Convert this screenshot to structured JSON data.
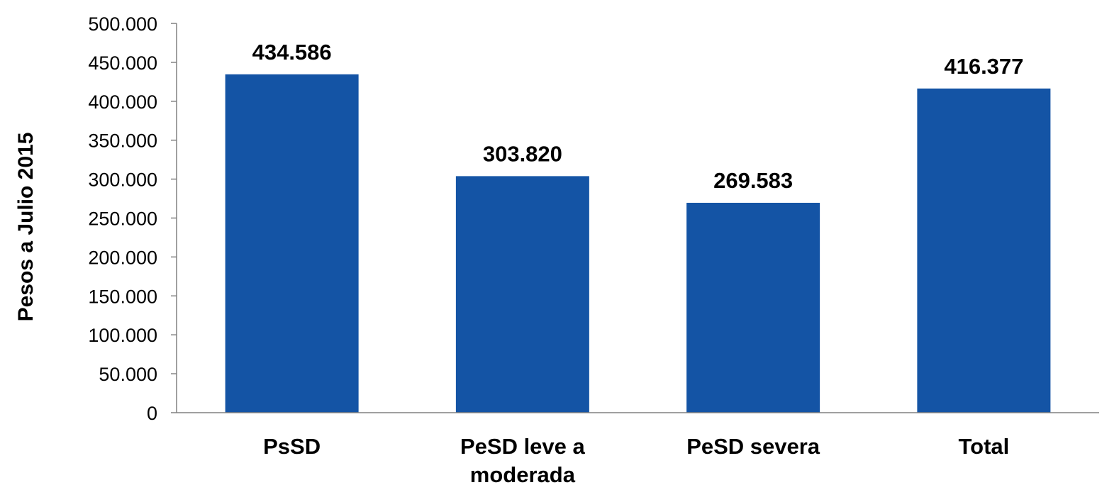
{
  "chart_data": {
    "type": "bar",
    "title": "",
    "xlabel": "",
    "ylabel": "Pesos a Julio 2015",
    "categories": [
      [
        "PsSD"
      ],
      [
        "PeSD leve a",
        "moderada"
      ],
      [
        "PeSD severa"
      ],
      [
        "Total"
      ]
    ],
    "values": [
      434586,
      303820,
      269583,
      416377
    ],
    "value_labels": [
      "434.586",
      "303.820",
      "269.583",
      "416.377"
    ],
    "ylim": [
      0,
      500000
    ],
    "yticks": [
      0,
      50000,
      100000,
      150000,
      200000,
      250000,
      300000,
      350000,
      400000,
      450000,
      500000
    ],
    "ytick_labels": [
      "0",
      "50.000",
      "100.000",
      "150.000",
      "200.000",
      "250.000",
      "300.000",
      "350.000",
      "400.000",
      "450.000",
      "500.000"
    ],
    "grid": false,
    "legend": "none",
    "bar_color": "#1454A5",
    "axis_color": "#808080"
  }
}
